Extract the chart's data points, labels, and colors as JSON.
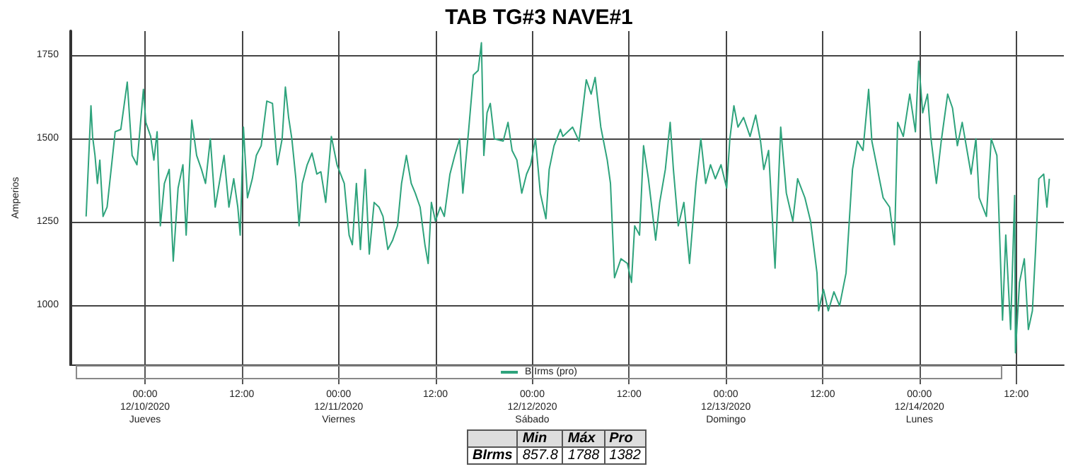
{
  "chart_data": {
    "type": "line",
    "title": "TAB TG#3 NAVE#1",
    "ylabel": "Amperios",
    "x": [
      "2020-12-09T16:42",
      "2020-12-09T17:18",
      "2020-12-09T17:30",
      "2020-12-09T17:48",
      "2020-12-09T18:06",
      "2020-12-09T18:24",
      "2020-12-09T18:48",
      "2020-12-09T19:18",
      "2020-12-09T19:48",
      "2020-12-09T20:18",
      "2020-12-09T21:00",
      "2020-12-09T21:48",
      "2020-12-09T22:24",
      "2020-12-09T23:00",
      "2020-12-09T23:24",
      "2020-12-09T23:48",
      "2020-12-10T00:06",
      "2020-12-10T00:42",
      "2020-12-10T01:06",
      "2020-12-10T01:30",
      "2020-12-10T01:54",
      "2020-12-10T02:24",
      "2020-12-10T03:00",
      "2020-12-10T03:30",
      "2020-12-10T04:06",
      "2020-12-10T04:42",
      "2020-12-10T05:06",
      "2020-12-10T05:48",
      "2020-12-10T06:24",
      "2020-12-10T07:00",
      "2020-12-10T07:30",
      "2020-12-10T08:06",
      "2020-12-10T08:42",
      "2020-12-10T09:18",
      "2020-12-10T09:48",
      "2020-12-10T10:24",
      "2020-12-10T11:00",
      "2020-12-10T11:30",
      "2020-12-10T11:48",
      "2020-12-10T12:12",
      "2020-12-10T12:42",
      "2020-12-10T13:18",
      "2020-12-10T13:48",
      "2020-12-10T14:24",
      "2020-12-10T15:06",
      "2020-12-10T15:48",
      "2020-12-10T16:24",
      "2020-12-10T17:00",
      "2020-12-10T17:24",
      "2020-12-10T17:48",
      "2020-12-10T18:12",
      "2020-12-10T18:42",
      "2020-12-10T19:06",
      "2020-12-10T19:30",
      "2020-12-10T20:06",
      "2020-12-10T20:42",
      "2020-12-10T21:18",
      "2020-12-10T21:48",
      "2020-12-10T22:24",
      "2020-12-10T23:06",
      "2020-12-10T23:48",
      "2020-12-11T00:42",
      "2020-12-11T01:18",
      "2020-12-11T01:42",
      "2020-12-11T02:12",
      "2020-12-11T02:42",
      "2020-12-11T03:18",
      "2020-12-11T03:48",
      "2020-12-11T04:24",
      "2020-12-11T05:00",
      "2020-12-11T05:30",
      "2020-12-11T06:06",
      "2020-12-11T06:42",
      "2020-12-11T07:18",
      "2020-12-11T07:48",
      "2020-12-11T08:24",
      "2020-12-11T09:00",
      "2020-12-11T09:30",
      "2020-12-11T10:06",
      "2020-12-11T10:42",
      "2020-12-11T11:06",
      "2020-12-11T11:30",
      "2020-12-11T12:00",
      "2020-12-11T12:36",
      "2020-12-11T13:06",
      "2020-12-11T13:48",
      "2020-12-11T14:24",
      "2020-12-11T15:00",
      "2020-12-11T15:24",
      "2020-12-11T16:06",
      "2020-12-11T16:42",
      "2020-12-11T17:18",
      "2020-12-11T17:42",
      "2020-12-11T18:00",
      "2020-12-11T18:24",
      "2020-12-11T18:48",
      "2020-12-11T19:18",
      "2020-12-11T20:24",
      "2020-12-11T21:00",
      "2020-12-11T21:30",
      "2020-12-11T22:06",
      "2020-12-11T22:42",
      "2020-12-11T23:18",
      "2020-12-11T23:48",
      "2020-12-12T00:24",
      "2020-12-12T01:00",
      "2020-12-12T01:42",
      "2020-12-12T02:06",
      "2020-12-12T02:42",
      "2020-12-12T03:30",
      "2020-12-12T03:48",
      "2020-12-12T05:00",
      "2020-12-12T05:48",
      "2020-12-12T06:42",
      "2020-12-12T07:18",
      "2020-12-12T07:48",
      "2020-12-12T08:30",
      "2020-12-12T09:18",
      "2020-12-12T09:42",
      "2020-12-12T10:12",
      "2020-12-12T11:00",
      "2020-12-12T11:48",
      "2020-12-12T12:18",
      "2020-12-12T12:42",
      "2020-12-12T13:18",
      "2020-12-12T13:48",
      "2020-12-12T14:24",
      "2020-12-12T15:18",
      "2020-12-12T15:48",
      "2020-12-12T16:30",
      "2020-12-12T17:06",
      "2020-12-12T17:30",
      "2020-12-12T18:06",
      "2020-12-12T18:48",
      "2020-12-12T19:30",
      "2020-12-12T20:18",
      "2020-12-12T20:54",
      "2020-12-12T21:30",
      "2020-12-12T22:06",
      "2020-12-12T22:42",
      "2020-12-12T23:24",
      "2020-12-13T00:06",
      "2020-12-13T00:30",
      "2020-12-13T01:00",
      "2020-12-13T01:30",
      "2020-12-13T02:12",
      "2020-12-13T03:00",
      "2020-12-13T03:42",
      "2020-12-13T04:18",
      "2020-12-13T04:42",
      "2020-12-13T05:18",
      "2020-12-13T06:06",
      "2020-12-13T06:48",
      "2020-12-13T07:30",
      "2020-12-13T08:18",
      "2020-12-13T08:54",
      "2020-12-13T09:48",
      "2020-12-13T10:30",
      "2020-12-13T11:18",
      "2020-12-13T11:30",
      "2020-12-13T12:06",
      "2020-12-13T12:42",
      "2020-12-13T13:24",
      "2020-12-13T14:06",
      "2020-12-13T14:54",
      "2020-12-13T15:42",
      "2020-12-13T16:18",
      "2020-12-13T17:00",
      "2020-12-13T17:42",
      "2020-12-13T18:06",
      "2020-12-13T18:48",
      "2020-12-13T19:30",
      "2020-12-13T20:18",
      "2020-12-13T20:54",
      "2020-12-13T21:18",
      "2020-12-13T22:00",
      "2020-12-13T22:48",
      "2020-12-13T23:30",
      "2020-12-13T23:54",
      "2020-12-14T00:24",
      "2020-12-14T01:00",
      "2020-12-14T01:24",
      "2020-12-14T02:06",
      "2020-12-14T02:42",
      "2020-12-14T03:30",
      "2020-12-14T04:06",
      "2020-12-14T04:42",
      "2020-12-14T05:18",
      "2020-12-14T05:48",
      "2020-12-14T06:24",
      "2020-12-14T07:00",
      "2020-12-14T07:24",
      "2020-12-14T08:18",
      "2020-12-14T08:54",
      "2020-12-14T09:36",
      "2020-12-14T10:18",
      "2020-12-14T10:42",
      "2020-12-14T11:18",
      "2020-12-14T11:48",
      "2020-12-14T11:54",
      "2020-12-14T12:24",
      "2020-12-14T13:00",
      "2020-12-14T13:30",
      "2020-12-14T14:00",
      "2020-12-14T14:24",
      "2020-12-14T14:48",
      "2020-12-14T15:24",
      "2020-12-14T15:48",
      "2020-12-14T16:06"
    ],
    "series": [
      {
        "name": "B Irms (pro)",
        "color": "#2ea37c",
        "values": [
          1267,
          1599,
          1507,
          1450,
          1366,
          1436,
          1267,
          1295,
          1408,
          1521,
          1528,
          1670,
          1450,
          1422,
          1535,
          1648,
          1549,
          1507,
          1436,
          1521,
          1239,
          1366,
          1408,
          1133,
          1352,
          1422,
          1211,
          1556,
          1450,
          1408,
          1366,
          1500,
          1295,
          1380,
          1450,
          1295,
          1380,
          1295,
          1211,
          1535,
          1323,
          1380,
          1450,
          1479,
          1613,
          1606,
          1422,
          1500,
          1655,
          1564,
          1500,
          1380,
          1239,
          1366,
          1422,
          1457,
          1394,
          1401,
          1309,
          1507,
          1422,
          1366,
          1211,
          1182,
          1366,
          1168,
          1408,
          1154,
          1309,
          1295,
          1267,
          1168,
          1196,
          1239,
          1366,
          1450,
          1366,
          1337,
          1295,
          1182,
          1126,
          1309,
          1253,
          1295,
          1267,
          1394,
          1450,
          1500,
          1337,
          1521,
          1691,
          1705,
          1788,
          1450,
          1578,
          1606,
          1500,
          1493,
          1549,
          1465,
          1436,
          1337,
          1394,
          1422,
          1500,
          1337,
          1260,
          1408,
          1479,
          1528,
          1507,
          1535,
          1493,
          1677,
          1634,
          1684,
          1535,
          1436,
          1366,
          1083,
          1140,
          1126,
          1069,
          1239,
          1211,
          1479,
          1380,
          1196,
          1309,
          1408,
          1549,
          1408,
          1239,
          1309,
          1126,
          1366,
          1500,
          1366,
          1422,
          1380,
          1422,
          1352,
          1500,
          1599,
          1535,
          1564,
          1507,
          1571,
          1493,
          1408,
          1465,
          1112,
          1535,
          1337,
          1253,
          1380,
          1323,
          1253,
          1097,
          984,
          1048,
          984,
          1041,
          999,
          1097,
          1408,
          1493,
          1465,
          1648,
          1493,
          1408,
          1323,
          1295,
          1182,
          1549,
          1507,
          1634,
          1521,
          1733,
          1578,
          1634,
          1507,
          1366,
          1493,
          1634,
          1592,
          1479,
          1549,
          1479,
          1394,
          1500,
          1323,
          1267,
          1500,
          1450,
          956,
          1211,
          928,
          1330,
          858,
          1069,
          1140,
          928,
          984,
          1168,
          1380,
          1394,
          1295,
          1380
        ]
      }
    ],
    "xlim": [
      "2020-12-09T14:42",
      "2020-12-14T17:54"
    ],
    "xticks": [
      {
        "value": "2020-12-10T00:00",
        "label": "00:00\n12/10/2020\nJueves"
      },
      {
        "value": "2020-12-10T12:00",
        "label": "12:00"
      },
      {
        "value": "2020-12-11T00:00",
        "label": "00:00\n12/11/2020\nViernes"
      },
      {
        "value": "2020-12-11T12:00",
        "label": "12:00"
      },
      {
        "value": "2020-12-12T00:00",
        "label": "00:00\n12/12/2020\nSábado"
      },
      {
        "value": "2020-12-12T12:00",
        "label": "12:00"
      },
      {
        "value": "2020-12-13T00:00",
        "label": "00:00\n12/13/2020\nDomingo"
      },
      {
        "value": "2020-12-13T12:00",
        "label": "12:00"
      },
      {
        "value": "2020-12-14T00:00",
        "label": "00:00\n12/14/2020\nLunes"
      },
      {
        "value": "2020-12-14T12:00",
        "label": "12:00"
      }
    ],
    "ylim": [
      823,
      1823
    ],
    "yticks": [
      1000,
      1250,
      1500,
      1750
    ],
    "grid": true,
    "legend": "bottom",
    "annotations": [
      "Min",
      "Máx",
      "Pro",
      "BIrms",
      "857.8",
      "1788",
      "1382"
    ]
  }
}
